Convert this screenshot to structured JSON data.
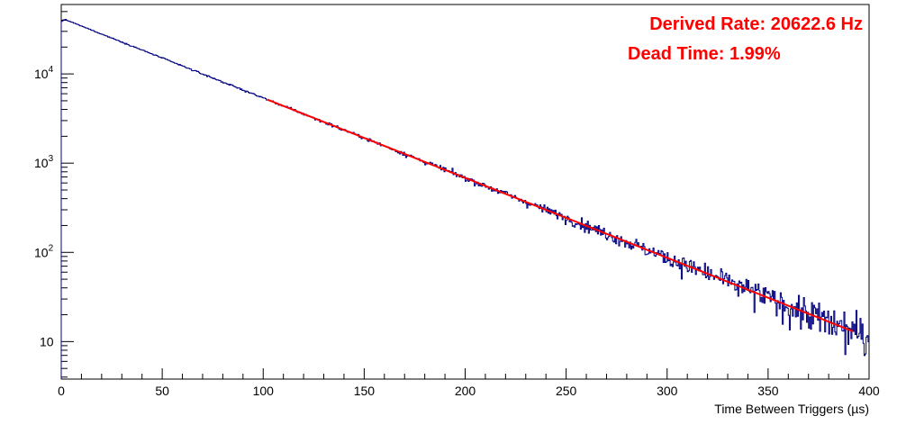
{
  "chart_data": {
    "type": "line",
    "title": "",
    "xlabel": "Time Between Triggers (µs)",
    "ylabel": "",
    "xlim": [
      0,
      400
    ],
    "ylim": [
      3.8,
      60000
    ],
    "yscale": "log",
    "grid": false,
    "x_ticks": [
      0,
      50,
      100,
      150,
      200,
      250,
      300,
      350,
      400
    ],
    "y_ticks": [
      {
        "value": 10,
        "label": "10"
      },
      {
        "value": 100,
        "label": "10",
        "exp": "2"
      },
      {
        "value": 1000,
        "label": "10",
        "exp": "3"
      },
      {
        "value": 10000,
        "label": "10",
        "exp": "4"
      }
    ],
    "annotations": [
      {
        "text": "Derived Rate: 20622.6 Hz",
        "color": "#ff0000"
      },
      {
        "text": "Dead Time: 1.99%",
        "color": "#ff0000"
      }
    ],
    "series": [
      {
        "style": "histogram",
        "color": "#000080",
        "x_range": [
          0,
          400
        ],
        "rate_hz": 20622.6,
        "peak_counts": 41000,
        "x_at_peak": 1.5,
        "x": [
          0,
          1,
          2,
          3,
          4,
          5,
          10,
          20,
          30,
          40,
          50,
          60,
          70,
          80,
          90,
          100,
          150,
          200,
          250,
          300,
          350,
          400
        ],
        "y": [
          38000,
          40500,
          40200,
          39800,
          39500,
          39000,
          36500,
          29800,
          24200,
          19800,
          16100,
          13100,
          10700,
          8700,
          7080,
          5770,
          2070,
          743,
          266,
          95,
          34,
          12
        ]
      },
      {
        "style": "fit",
        "color": "#ff0000",
        "x_range": [
          102,
          392
        ],
        "x": [
          102,
          150,
          200,
          250,
          300,
          350,
          392
        ],
        "y": [
          5220,
          2070,
          743,
          266,
          95,
          34,
          14.4
        ]
      }
    ]
  }
}
